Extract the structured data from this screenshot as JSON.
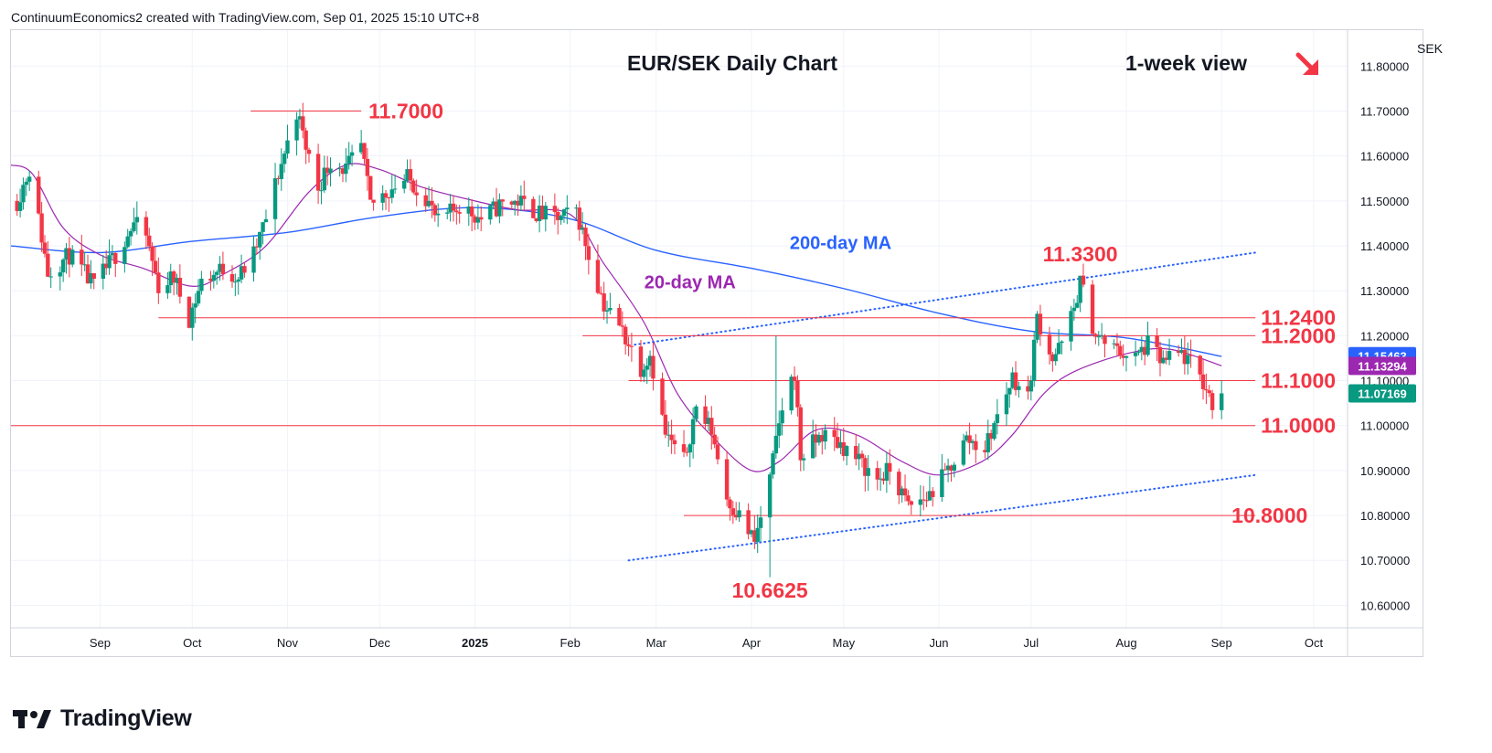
{
  "header": {
    "attribution": "ContinuumEconomics2 created with TradingView.com, Sep 01, 2025 15:10 UTC+8"
  },
  "brand": {
    "name": "TradingView",
    "logo_text": "TV"
  },
  "colors": {
    "up": "#089981",
    "down": "#f23645",
    "ma20": "#9c27b0",
    "ma200": "#2962ff",
    "levels": "#f23645",
    "channel": "#2962ff",
    "grid": "#f0f3fa"
  },
  "icons": {
    "trend": "arrow-down-right-icon"
  },
  "chart_data": {
    "type": "candlestick",
    "title": "EUR/SEK Daily Chart",
    "subtitle": "1-week view",
    "currency": "SEK",
    "ylim": [
      10.55,
      11.88
    ],
    "xlim": [
      "2024-08-03",
      "2025-10-12"
    ],
    "y_ticks": [
      "10.60000",
      "10.70000",
      "10.80000",
      "10.90000",
      "11.00000",
      "11.10000",
      "11.20000",
      "11.30000",
      "11.40000",
      "11.50000",
      "11.60000",
      "11.70000",
      "11.80000"
    ],
    "x_ticks": [
      {
        "label": "Sep",
        "date": "2024-09-01"
      },
      {
        "label": "Oct",
        "date": "2024-10-01"
      },
      {
        "label": "Nov",
        "date": "2024-11-01"
      },
      {
        "label": "Dec",
        "date": "2024-12-01"
      },
      {
        "label": "2025",
        "date": "2025-01-01"
      },
      {
        "label": "Feb",
        "date": "2025-02-01"
      },
      {
        "label": "Mar",
        "date": "2025-03-01"
      },
      {
        "label": "Apr",
        "date": "2025-04-01"
      },
      {
        "label": "May",
        "date": "2025-05-01"
      },
      {
        "label": "Jun",
        "date": "2025-06-01"
      },
      {
        "label": "Jul",
        "date": "2025-07-01"
      },
      {
        "label": "Aug",
        "date": "2025-08-01"
      },
      {
        "label": "Sep",
        "date": "2025-09-01"
      },
      {
        "label": "Oct",
        "date": "2025-10-01"
      }
    ],
    "price_badges": [
      {
        "label": "11.15463",
        "value": 11.1546,
        "color": "#2962ff"
      },
      {
        "label": "11.13294",
        "value": 11.1329,
        "color": "#9c27b0"
      },
      {
        "label": "11.07169",
        "value": 11.0717,
        "color": "#089981"
      }
    ],
    "levels": [
      {
        "label": "11.7000",
        "value": 11.7,
        "start": "2024-10-20",
        "end": "2024-11-25"
      },
      {
        "label": "11.2400",
        "value": 11.24,
        "start": "2024-09-20",
        "end": "2025-09-12"
      },
      {
        "label": "11.2000",
        "value": 11.2,
        "start": "2025-02-05",
        "end": "2025-09-12"
      },
      {
        "label": "11.1000",
        "value": 11.1,
        "start": "2025-02-20",
        "end": "2025-09-12"
      },
      {
        "label": "11.0000",
        "value": 11.0,
        "start": "2024-08-03",
        "end": "2025-09-12"
      },
      {
        "label": "10.8000",
        "value": 10.8,
        "start": "2025-03-10",
        "end": "2025-09-12"
      }
    ],
    "annotations": [
      {
        "label": "11.3300",
        "date": "2025-07-17",
        "value": 11.365
      },
      {
        "label": "10.6625",
        "date": "2025-04-07",
        "value": 10.617
      }
    ],
    "ma_labels": [
      {
        "label": "200-day MA",
        "date": "2025-04-30",
        "value": 11.393,
        "color": "#2962ff"
      },
      {
        "label": "20-day MA",
        "date": "2025-03-12",
        "value": 11.305,
        "color": "#9c27b0"
      }
    ],
    "channel_lines": [
      {
        "points": [
          [
            "2025-02-20",
            10.7
          ],
          [
            "2025-09-12",
            10.89
          ]
        ]
      },
      {
        "points": [
          [
            "2025-02-22",
            11.18
          ],
          [
            "2025-09-12",
            11.385
          ]
        ]
      }
    ],
    "ma200_path": [
      [
        "2024-08-03",
        11.4
      ],
      [
        "2024-09-01",
        11.385
      ],
      [
        "2024-10-01",
        11.41
      ],
      [
        "2024-11-01",
        11.43
      ],
      [
        "2024-12-01",
        11.465
      ],
      [
        "2025-01-01",
        11.485
      ],
      [
        "2025-02-01",
        11.46
      ],
      [
        "2025-03-01",
        11.39
      ],
      [
        "2025-04-01",
        11.35
      ],
      [
        "2025-05-01",
        11.305
      ],
      [
        "2025-06-01",
        11.25
      ],
      [
        "2025-07-01",
        11.21
      ],
      [
        "2025-08-01",
        11.195
      ],
      [
        "2025-09-01",
        11.154
      ]
    ],
    "ma20_path": [
      [
        "2024-08-03",
        11.58
      ],
      [
        "2024-08-10",
        11.56
      ],
      [
        "2024-08-20",
        11.44
      ],
      [
        "2024-09-01",
        11.38
      ],
      [
        "2024-09-15",
        11.35
      ],
      [
        "2024-10-01",
        11.31
      ],
      [
        "2024-10-12",
        11.34
      ],
      [
        "2024-10-25",
        11.4
      ],
      [
        "2024-11-08",
        11.52
      ],
      [
        "2024-11-20",
        11.58
      ],
      [
        "2024-12-01",
        11.57
      ],
      [
        "2024-12-15",
        11.53
      ],
      [
        "2025-01-01",
        11.5
      ],
      [
        "2025-01-15",
        11.48
      ],
      [
        "2025-02-01",
        11.47
      ],
      [
        "2025-02-12",
        11.36
      ],
      [
        "2025-02-25",
        11.23
      ],
      [
        "2025-03-08",
        11.07
      ],
      [
        "2025-03-20",
        10.97
      ],
      [
        "2025-04-01",
        10.9
      ],
      [
        "2025-04-10",
        10.92
      ],
      [
        "2025-04-22",
        10.99
      ],
      [
        "2025-05-05",
        10.98
      ],
      [
        "2025-05-20",
        10.92
      ],
      [
        "2025-06-01",
        10.89
      ],
      [
        "2025-06-15",
        10.92
      ],
      [
        "2025-06-25",
        10.98
      ],
      [
        "2025-07-05",
        11.07
      ],
      [
        "2025-07-15",
        11.12
      ],
      [
        "2025-08-01",
        11.16
      ],
      [
        "2025-08-15",
        11.17
      ],
      [
        "2025-09-01",
        11.133
      ]
    ],
    "close_path": [
      [
        "2024-08-05",
        11.5
      ],
      [
        "2024-08-09",
        11.57
      ],
      [
        "2024-08-13",
        11.42
      ],
      [
        "2024-08-15",
        11.34
      ],
      [
        "2024-08-22",
        11.38
      ],
      [
        "2024-08-30",
        11.31
      ],
      [
        "2024-09-06",
        11.38
      ],
      [
        "2024-09-12",
        11.45
      ],
      [
        "2024-09-16",
        11.42
      ],
      [
        "2024-09-20",
        11.31
      ],
      [
        "2024-09-25",
        11.33
      ],
      [
        "2024-09-30",
        11.24
      ],
      [
        "2024-10-04",
        11.32
      ],
      [
        "2024-10-11",
        11.35
      ],
      [
        "2024-10-16",
        11.33
      ],
      [
        "2024-10-21",
        11.38
      ],
      [
        "2024-10-25",
        11.46
      ],
      [
        "2024-10-29",
        11.56
      ],
      [
        "2024-11-01",
        11.63
      ],
      [
        "2024-11-04",
        11.7
      ],
      [
        "2024-11-07",
        11.62
      ],
      [
        "2024-11-11",
        11.53
      ],
      [
        "2024-11-15",
        11.59
      ],
      [
        "2024-11-20",
        11.57
      ],
      [
        "2024-11-25",
        11.62
      ],
      [
        "2024-11-28",
        11.49
      ],
      [
        "2024-12-05",
        11.53
      ],
      [
        "2024-12-10",
        11.55
      ],
      [
        "2024-12-16",
        11.51
      ],
      [
        "2024-12-20",
        11.45
      ],
      [
        "2024-12-27",
        11.49
      ],
      [
        "2025-01-03",
        11.46
      ],
      [
        "2025-01-09",
        11.49
      ],
      [
        "2025-01-15",
        11.5
      ],
      [
        "2025-01-22",
        11.47
      ],
      [
        "2025-01-29",
        11.46
      ],
      [
        "2025-02-03",
        11.48
      ],
      [
        "2025-02-07",
        11.38
      ],
      [
        "2025-02-12",
        11.27
      ],
      [
        "2025-02-18",
        11.21
      ],
      [
        "2025-02-24",
        11.13
      ],
      [
        "2025-02-27",
        11.16
      ],
      [
        "2025-03-04",
        10.98
      ],
      [
        "2025-03-10",
        10.92
      ],
      [
        "2025-03-14",
        11.04
      ],
      [
        "2025-03-19",
        10.99
      ],
      [
        "2025-03-24",
        10.84
      ],
      [
        "2025-03-28",
        10.8
      ],
      [
        "2025-04-02",
        10.74
      ],
      [
        "2025-04-07",
        10.88
      ],
      [
        "2025-04-11",
        11.04
      ],
      [
        "2025-04-15",
        11.12
      ],
      [
        "2025-04-17",
        10.93
      ],
      [
        "2025-04-24",
        10.98
      ],
      [
        "2025-04-30",
        10.96
      ],
      [
        "2025-05-06",
        10.92
      ],
      [
        "2025-05-12",
        10.88
      ],
      [
        "2025-05-16",
        10.9
      ],
      [
        "2025-05-22",
        10.82
      ],
      [
        "2025-05-28",
        10.84
      ],
      [
        "2025-06-03",
        10.89
      ],
      [
        "2025-06-10",
        10.97
      ],
      [
        "2025-06-16",
        10.95
      ],
      [
        "2025-06-20",
        11.02
      ],
      [
        "2025-06-25",
        11.11
      ],
      [
        "2025-06-30",
        11.06
      ],
      [
        "2025-07-03",
        11.24
      ],
      [
        "2025-07-08",
        11.15
      ],
      [
        "2025-07-11",
        11.18
      ],
      [
        "2025-07-15",
        11.26
      ],
      [
        "2025-07-17",
        11.32
      ],
      [
        "2025-07-22",
        11.2
      ],
      [
        "2025-07-28",
        11.17
      ],
      [
        "2025-08-04",
        11.15
      ],
      [
        "2025-08-08",
        11.18
      ],
      [
        "2025-08-13",
        11.14
      ],
      [
        "2025-08-19",
        11.16
      ],
      [
        "2025-08-25",
        11.11
      ],
      [
        "2025-08-29",
        11.05
      ],
      [
        "2025-09-01",
        11.0717
      ]
    ]
  }
}
